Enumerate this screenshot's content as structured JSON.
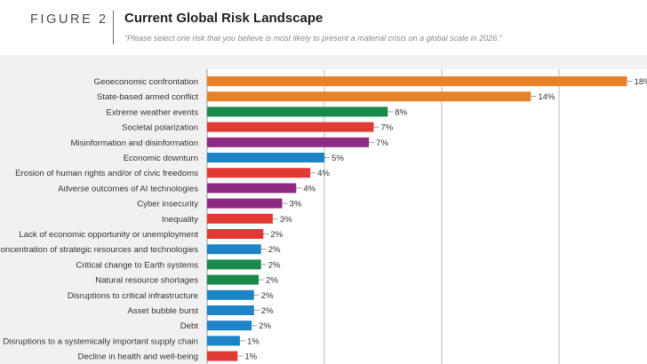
{
  "header": {
    "figure_label": "FIGURE 2",
    "title": "Current Global Risk Landscape",
    "subtitle": "“Please select one risk that you believe is most likely to present a material crisis on a global scale in 2026.”"
  },
  "colors": {
    "economic": "#e8822a",
    "geopolitical": "#e8822a",
    "environmental": "#1a8a48",
    "societal": "#e03a35",
    "technological": "#8e2a82",
    "economic_blue": "#1d84c6"
  },
  "chart_data": {
    "type": "bar",
    "orientation": "horizontal",
    "title": "Current Global Risk Landscape",
    "xlim": [
      0,
      18
    ],
    "xgrid_ticks": [
      0,
      5,
      10,
      15
    ],
    "value_suffix": "%",
    "categories": [
      "Geoeconomic confrontation",
      "State-based armed conflict",
      "Extreme weather events",
      "Societal polarization",
      "Misinformation and disinformation",
      "Economic downturn",
      "Erosion of human rights and/or of civic freedoms",
      "Adverse outcomes of AI technologies",
      "Cyber insecurity",
      "Inequality",
      "Lack of economic opportunity or unemployment",
      "Concentration of strategic resources and technologies",
      "Critical change to Earth systems",
      "Natural resource shortages",
      "Disruptions to critical infrastructure",
      "Asset bubble burst",
      "Debt",
      "Disruptions to a systemically important supply chain",
      "Decline in health and well-being"
    ],
    "values": [
      18,
      14,
      8,
      7,
      7,
      5,
      4,
      4,
      3,
      3,
      2,
      2,
      2,
      2,
      2,
      2,
      2,
      1,
      1
    ],
    "plot_values": [
      17.9,
      13.8,
      7.7,
      7.1,
      6.9,
      5.0,
      4.4,
      3.8,
      3.2,
      2.8,
      2.4,
      2.3,
      2.3,
      2.2,
      2.0,
      2.0,
      1.9,
      1.4,
      1.3
    ],
    "value_labels": [
      "18%",
      "14%",
      "8%",
      "7%",
      "7%",
      "5%",
      "4%",
      "4%",
      "3%",
      "3%",
      "2%",
      "2%",
      "2%",
      "2%",
      "2%",
      "2%",
      "2%",
      "1%",
      "1%"
    ],
    "bar_colors": [
      "#e8822a",
      "#e8822a",
      "#1a8a48",
      "#e03a35",
      "#8e2a82",
      "#1d84c6",
      "#e03a35",
      "#8e2a82",
      "#8e2a82",
      "#e03a35",
      "#e03a35",
      "#1d84c6",
      "#1a8a48",
      "#1a8a48",
      "#1d84c6",
      "#1d84c6",
      "#1d84c6",
      "#1d84c6",
      "#e03a35"
    ]
  }
}
